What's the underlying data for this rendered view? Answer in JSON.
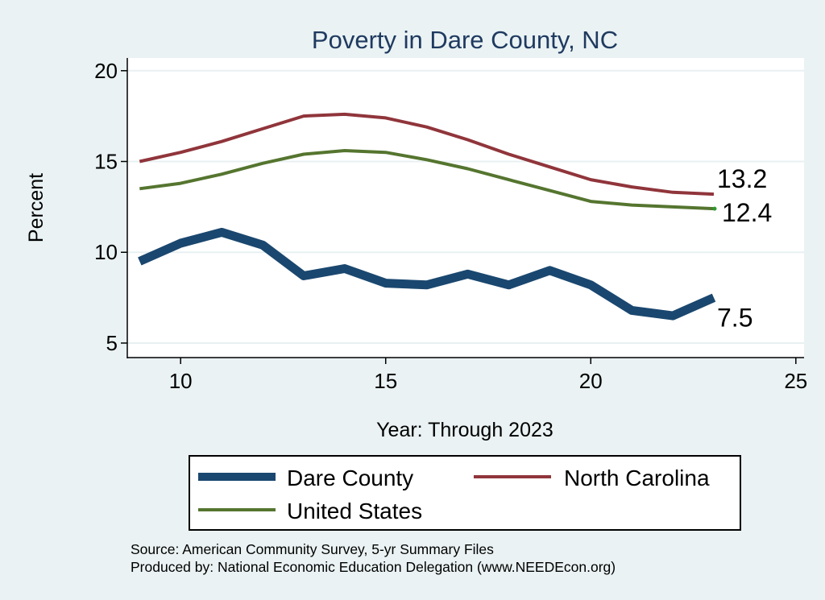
{
  "chart_data": {
    "type": "line",
    "title": "Poverty in Dare County, NC",
    "xlabel": "Year: Through 2023",
    "ylabel": "Percent",
    "xlim": [
      8.7,
      25.2
    ],
    "ylim": [
      4.2,
      20.7
    ],
    "xticks": [
      10,
      15,
      20,
      25
    ],
    "yticks": [
      5,
      10,
      15,
      20
    ],
    "grid": "horizontal",
    "x": [
      9,
      10,
      11,
      12,
      13,
      14,
      15,
      16,
      17,
      18,
      19,
      20,
      21,
      22,
      23
    ],
    "series": [
      {
        "name": "Dare County",
        "color": "#1a476f",
        "width": 11,
        "end_label": "7.5",
        "values": [
          9.5,
          10.5,
          11.1,
          10.4,
          8.7,
          9.1,
          8.3,
          8.2,
          8.8,
          8.2,
          9.0,
          8.2,
          6.8,
          6.5,
          7.5
        ]
      },
      {
        "name": "North Carolina",
        "color": "#90353b",
        "width": 4,
        "end_label": "13.2",
        "values": [
          15.0,
          15.5,
          16.1,
          16.8,
          17.5,
          17.6,
          17.4,
          16.9,
          16.2,
          15.4,
          14.7,
          14.0,
          13.6,
          13.3,
          13.2
        ]
      },
      {
        "name": "United States",
        "color": "#55752f",
        "width": 4,
        "end_label": "12.4",
        "values": [
          13.5,
          13.8,
          14.3,
          14.9,
          15.4,
          15.6,
          15.5,
          15.1,
          14.6,
          14.0,
          13.4,
          12.8,
          12.6,
          12.5,
          12.4
        ]
      }
    ],
    "legend": {
      "placement": "bottom",
      "entries": [
        "Dare County",
        "North Carolina",
        "United States"
      ]
    }
  },
  "footnotes": {
    "source": "Source: American Community Survey, 5-yr Summary Files",
    "producer": "Produced by: National Economic Education Delegation (www.NEEDEcon.org)"
  },
  "colors": {
    "background": "#eaf2f3",
    "plot_background": "#ffffff",
    "gridline": "#e8f0f1",
    "title": "#1f3a60"
  }
}
